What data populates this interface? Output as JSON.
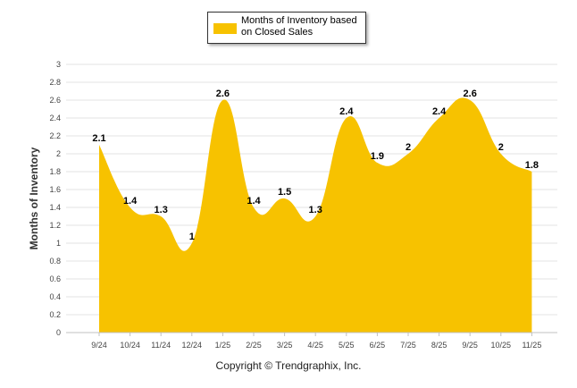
{
  "chart_data": {
    "type": "area",
    "legend": "Months of Inventory based on Closed Sales",
    "ylabel": "Months of Inventory",
    "xlabel": "",
    "categories": [
      "9/24",
      "10/24",
      "11/24",
      "12/24",
      "1/25",
      "2/25",
      "3/25",
      "4/25",
      "5/25",
      "6/25",
      "7/25",
      "8/25",
      "9/25",
      "10/25",
      "11/25"
    ],
    "values": [
      2.1,
      1.4,
      1.3,
      1,
      2.6,
      1.4,
      1.5,
      1.3,
      2.4,
      1.9,
      2,
      2.4,
      2.6,
      2,
      1.8
    ],
    "data_labels": [
      "2.1",
      "1.4",
      "1.3",
      "1",
      "2.6",
      "1.4",
      "1.5",
      "1.3",
      "2.4",
      "1.9",
      "2",
      "2.4",
      "2.6",
      "2",
      "1.8"
    ],
    "ylim": [
      0,
      3
    ],
    "yticks": [
      "0",
      "0.2",
      "0.4",
      "0.6",
      "0.8",
      "1",
      "1.2",
      "1.4",
      "1.6",
      "1.8",
      "2",
      "2.2",
      "2.4",
      "2.6",
      "2.8",
      "3"
    ],
    "grid": true,
    "legend_position": "top-center",
    "series_color": "#F7C200"
  },
  "footer": {
    "copyright": "Copyright © Trendgraphix, Inc."
  }
}
